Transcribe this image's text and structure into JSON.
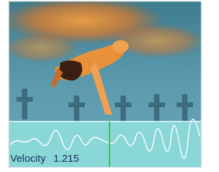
{
  "overlay": {
    "label": "Velocity",
    "value": 1.215
  }
}
